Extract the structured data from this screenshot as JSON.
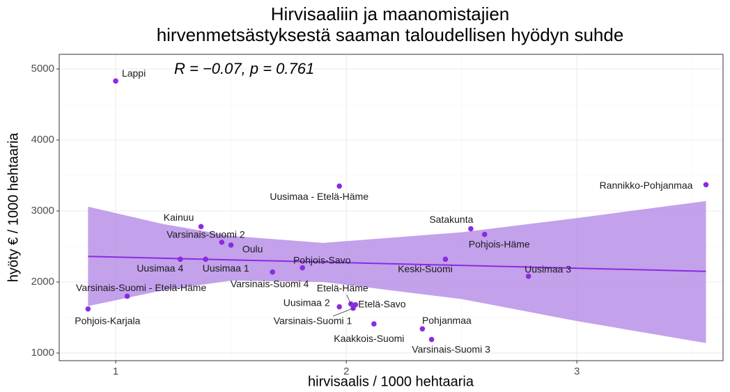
{
  "chart_data": {
    "type": "scatter",
    "title": [
      "Hirvisaaliin ja maanomistajien",
      "hirvenmetsästyksestä saaman taloudellisen hyödyn suhde"
    ],
    "annotation": "R = −0.07, p = 0.761",
    "x_label": "hirvisaalis / 1000 hehtaaria",
    "y_label": "hyöty € / 1000 hehtaaria",
    "labels": [
      "Lappi",
      "Pohjois-Karjala",
      "Varsinais-Suomi - Etelä-Häme",
      "Uusimaa 4",
      "Kainuu",
      "Uusimaa 1",
      "Varsinais-Suomi 2",
      "Oulu",
      "Varsinais-Suomi 4",
      "Pohjois-Savo",
      "Uusimaa - Etelä-Häme",
      "Uusimaa 2",
      "Etelä-Häme",
      "Etelä-Savo",
      "Varsinais-Suomi 1",
      "Kaakkois-Suomi",
      "Pohjanmaa",
      "Varsinais-Suomi 3",
      "Keski-Suomi",
      "Satakunta",
      "Pohjois-Häme",
      "Uusimaa 3",
      "Rannikko-Pohjanmaa"
    ],
    "x": [
      1.0,
      0.88,
      1.05,
      1.28,
      1.37,
      1.39,
      1.46,
      1.5,
      1.68,
      1.81,
      1.97,
      1.97,
      2.02,
      2.04,
      2.03,
      2.12,
      2.33,
      2.37,
      2.43,
      2.54,
      2.6,
      2.79,
      3.56
    ],
    "values": [
      4830,
      1620,
      1800,
      2320,
      2780,
      2320,
      2560,
      2520,
      2140,
      2200,
      3350,
      1650,
      1690,
      1680,
      1630,
      1410,
      1340,
      1190,
      2320,
      2750,
      2670,
      2080,
      3370
    ],
    "color": "#8a2be2",
    "trend": {
      "x": [
        0.88,
        3.56
      ],
      "values": [
        2360,
        2150
      ],
      "color": "#8a2be2"
    },
    "band": {
      "x": [
        0.88,
        1.2,
        1.5,
        1.9,
        2.5,
        3.0,
        3.56
      ],
      "upper": [
        3060,
        2820,
        2650,
        2550,
        2700,
        2900,
        3140
      ],
      "lower": [
        1660,
        1880,
        2020,
        2000,
        1760,
        1450,
        1140
      ],
      "color": "#b48ae6"
    },
    "xlim": [
      0.755,
      3.634
    ],
    "ylim": [
      892,
      5206
    ],
    "xticks": [
      1,
      2,
      3
    ],
    "yticks": [
      1000,
      2000,
      3000,
      4000,
      5000
    ],
    "grid": true
  }
}
